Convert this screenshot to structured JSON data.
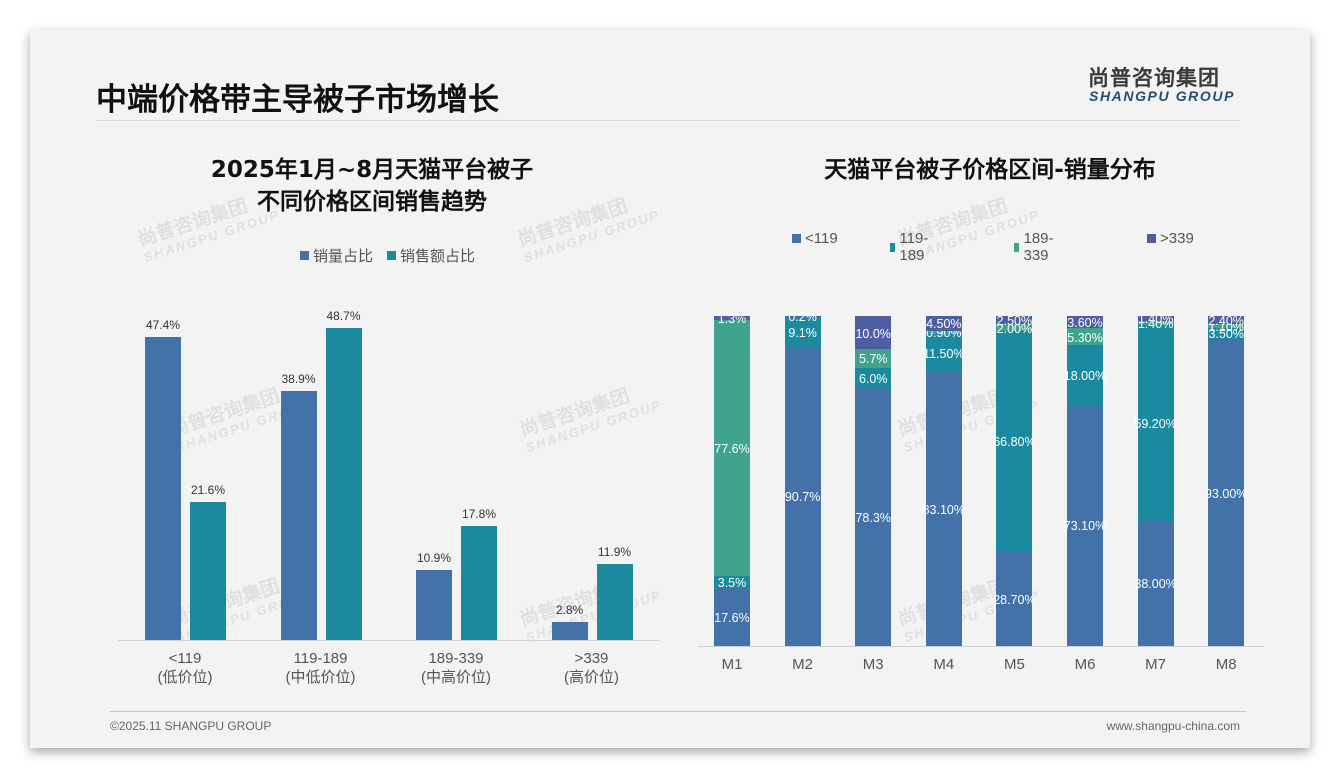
{
  "header": {
    "title": "中端价格带主导被子市场增长",
    "logo_cn": "尚普咨询集团",
    "logo_en": "SHANGPU GROUP"
  },
  "footer": {
    "copyright": "©2025.11 SHANGPU GROUP",
    "website": "www.shangpu-china.com"
  },
  "watermark": {
    "cn": "尚普咨询集团",
    "en": "SHANGPU GROUP"
  },
  "left_chart": {
    "title_line1": "2025年1月~8月天猫平台被子",
    "title_line2": "不同价格区间销售趋势",
    "legend": [
      "销量占比",
      "销售额占比"
    ],
    "colors": [
      "#4272a8",
      "#1b8a9e"
    ],
    "xlabels": [
      {
        "range": "<119",
        "tier": "(低价位)"
      },
      {
        "range": "119-189",
        "tier": "(中低价位)"
      },
      {
        "range": "189-339",
        "tier": "(中高价位)"
      },
      {
        "range": ">339",
        "tier": "(高价位)"
      }
    ],
    "vol_labels": [
      "47.4%",
      "38.9%",
      "10.9%",
      "2.8%"
    ],
    "rev_labels": [
      "21.6%",
      "48.7%",
      "17.8%",
      "11.9%"
    ]
  },
  "right_chart": {
    "title": "天猫平台被子价格区间-销量分布",
    "legend": [
      "<119",
      "119-189",
      "189-339",
      ">339"
    ],
    "colors": [
      "#4272a8",
      "#1b8a9e",
      "#3fa38e",
      "#4d5fa0"
    ],
    "months": [
      "M1",
      "M2",
      "M3",
      "M4",
      "M5",
      "M6",
      "M7",
      "M8"
    ],
    "labels": [
      [
        "17.6%",
        "3.5%",
        "77.6%",
        "1.3%"
      ],
      [
        "90.7%",
        "9.1%",
        "",
        "0.2%"
      ],
      [
        "78.3%",
        "6.0%",
        "5.7%",
        "10.0%"
      ],
      [
        "83.10%",
        "11.50%",
        "0.90%",
        "4.50%"
      ],
      [
        "28.70%",
        "66.80%",
        "2.00%",
        "2.50%"
      ],
      [
        "73.10%",
        "18.00%",
        "5.30%",
        "3.60%"
      ],
      [
        "38.00%",
        "59.20%",
        "1.40%",
        "1.40%"
      ],
      [
        "93.00%",
        "3.50%",
        "1.10%",
        "2.40%"
      ]
    ]
  },
  "chart_data": [
    {
      "type": "bar",
      "title": "2025年1月~8月天猫平台被子不同价格区间销售趋势",
      "categories": [
        "<119 (低价位)",
        "119-189 (中低价位)",
        "189-339 (中高价位)",
        ">339 (高价位)"
      ],
      "series": [
        {
          "name": "销量占比",
          "values": [
            47.4,
            38.9,
            10.9,
            2.8
          ]
        },
        {
          "name": "销售额占比",
          "values": [
            21.6,
            48.7,
            17.8,
            11.9
          ]
        }
      ],
      "xlabel": "",
      "ylabel": "%",
      "legend_position": "top",
      "grid": false
    },
    {
      "type": "bar",
      "stacked": true,
      "title": "天猫平台被子价格区间-销量分布",
      "categories": [
        "M1",
        "M2",
        "M3",
        "M4",
        "M5",
        "M6",
        "M7",
        "M8"
      ],
      "series": [
        {
          "name": "<119",
          "values": [
            17.6,
            90.7,
            78.3,
            83.1,
            28.7,
            73.1,
            38.0,
            93.0
          ]
        },
        {
          "name": "119-189",
          "values": [
            3.5,
            9.1,
            6.0,
            11.5,
            66.8,
            18.0,
            59.2,
            3.5
          ]
        },
        {
          "name": "189-339",
          "values": [
            77.6,
            0,
            5.7,
            0.9,
            2.0,
            5.3,
            1.4,
            1.1
          ]
        },
        {
          "name": ">339",
          "values": [
            1.3,
            0.2,
            10.0,
            4.5,
            2.5,
            3.6,
            1.4,
            2.4
          ]
        }
      ],
      "ylim": [
        0,
        100
      ],
      "legend_position": "top",
      "grid": false
    }
  ]
}
